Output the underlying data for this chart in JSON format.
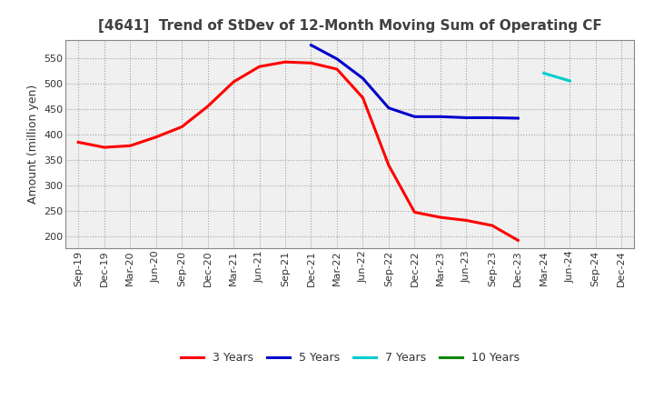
{
  "title": "[4641]  Trend of StDev of 12-Month Moving Sum of Operating CF",
  "ylabel": "Amount (million yen)",
  "background_color": "#ffffff",
  "plot_bg_color": "#f0f0f0",
  "grid_color": "#999999",
  "title_color": "#404040",
  "series": {
    "3years": {
      "label": "3 Years",
      "color": "#ff0000",
      "x": [
        "Sep-19",
        "Dec-19",
        "Mar-20",
        "Jun-20",
        "Sep-20",
        "Dec-20",
        "Mar-21",
        "Jun-21",
        "Sep-21",
        "Dec-21",
        "Mar-22",
        "Jun-22",
        "Sep-22",
        "Dec-22",
        "Mar-23",
        "Jun-23",
        "Sep-23",
        "Dec-23"
      ],
      "y": [
        385,
        375,
        378,
        395,
        415,
        455,
        503,
        533,
        542,
        540,
        528,
        472,
        340,
        248,
        238,
        232,
        222,
        193
      ]
    },
    "5years": {
      "label": "5 Years",
      "color": "#0000cc",
      "x": [
        "Dec-21",
        "Mar-22",
        "Jun-22",
        "Sep-22",
        "Dec-22",
        "Mar-23",
        "Jun-23",
        "Sep-23",
        "Dec-23"
      ],
      "y": [
        575,
        548,
        510,
        452,
        435,
        435,
        433,
        433,
        432
      ]
    },
    "7years": {
      "label": "7 Years",
      "color": "#00cccc",
      "x": [
        "Mar-24",
        "Jun-24"
      ],
      "y": [
        520,
        505
      ]
    },
    "10years": {
      "label": "10 Years",
      "color": "#008800",
      "x": [],
      "y": []
    }
  },
  "xtick_labels": [
    "Sep-19",
    "Dec-19",
    "Mar-20",
    "Jun-20",
    "Sep-20",
    "Dec-20",
    "Mar-21",
    "Jun-21",
    "Sep-21",
    "Dec-21",
    "Mar-22",
    "Jun-22",
    "Sep-22",
    "Dec-22",
    "Mar-23",
    "Jun-23",
    "Sep-23",
    "Dec-23",
    "Mar-24",
    "Jun-24",
    "Sep-24",
    "Dec-24"
  ],
  "ylim": [
    178,
    585
  ],
  "yticks": [
    200,
    250,
    300,
    350,
    400,
    450,
    500,
    550
  ],
  "linewidth": 2.2,
  "title_fontsize": 11,
  "axis_fontsize": 8,
  "ylabel_fontsize": 9
}
